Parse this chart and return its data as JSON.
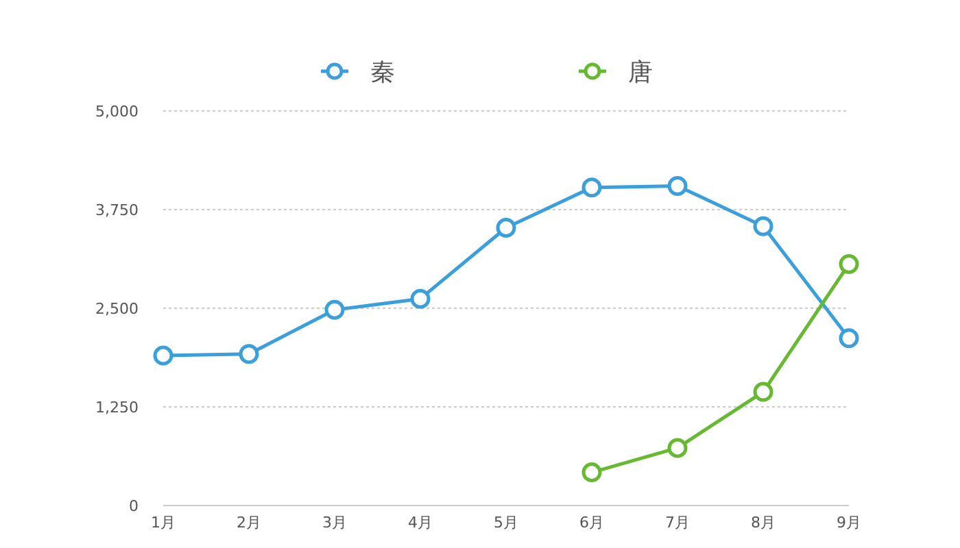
{
  "chart_data": {
    "type": "line",
    "categories": [
      "1月",
      "2月",
      "3月",
      "4月",
      "5月",
      "6月",
      "7月",
      "8月",
      "9月"
    ],
    "series": [
      {
        "name": "秦",
        "color": "#3a9fdb",
        "values": [
          1900,
          1920,
          2480,
          2620,
          3520,
          4030,
          4050,
          3540,
          2120
        ]
      },
      {
        "name": "唐",
        "color": "#67b932",
        "values": [
          null,
          null,
          null,
          null,
          null,
          420,
          730,
          1440,
          3060
        ]
      }
    ],
    "ylim": [
      0,
      5000
    ],
    "yticks": [
      {
        "value": 0,
        "label": "0"
      },
      {
        "value": 1250,
        "label": "1,250"
      },
      {
        "value": 2500,
        "label": "2,500"
      },
      {
        "value": 3750,
        "label": "3,750"
      },
      {
        "value": 5000,
        "label": "5,000"
      }
    ],
    "grid": "y",
    "legend": "top",
    "marker": "circle",
    "line_style": "solid"
  }
}
